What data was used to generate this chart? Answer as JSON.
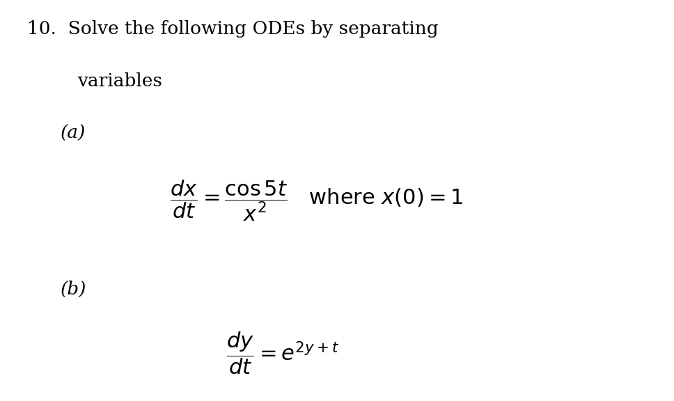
{
  "background_color": "#ffffff",
  "figsize": [
    9.68,
    5.76
  ],
  "dpi": 100,
  "title_line1": "10.  Solve the following ODEs by separating",
  "title_line2": "variables",
  "part_a_label": "(a)",
  "part_b_label": "(b)",
  "eq_a": "\\dfrac{dx}{dt} = \\dfrac{\\cos 5t}{x^2} \\quad \\text{where } x(0) = 1",
  "eq_b": "\\dfrac{dy}{dt} = e^{2y+t}",
  "title_fontsize": 19,
  "label_fontsize": 19,
  "eq_fontsize": 22,
  "text_color": "#000000",
  "font_family": "serif"
}
